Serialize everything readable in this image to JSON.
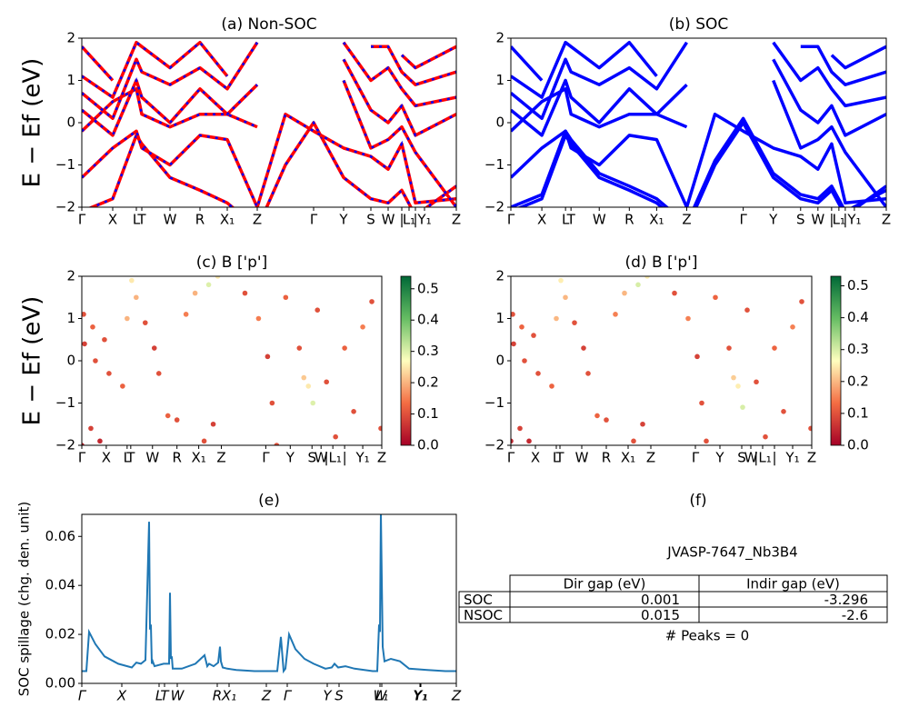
{
  "chart_data": [
    {
      "type": "band",
      "title": "(a) Non-SOC",
      "ylabel": "E − Ef (eV)",
      "color_overlay": "#0000ff",
      "xlim": [
        0,
        412
      ],
      "ylim": [
        -2,
        2
      ],
      "yticks": [
        {
          "value": -2,
          "label": "−2"
        },
        {
          "value": -1,
          "label": "−1"
        },
        0,
        1,
        2
      ],
      "xticks": [
        {
          "value": 0,
          "label": "Γ"
        },
        {
          "value": 34,
          "label": "X"
        },
        {
          "value": 60,
          "label": "L"
        },
        {
          "value": 66,
          "label": "T"
        },
        {
          "value": 97,
          "label": "W"
        },
        {
          "value": 130,
          "label": "R"
        },
        {
          "value": 160,
          "label": "X₁"
        },
        {
          "value": 193,
          "label": "Z"
        },
        {
          "value": 255,
          "label": "Γ"
        },
        {
          "value": 288,
          "label": "Y"
        },
        {
          "value": 318,
          "label": "S"
        },
        {
          "value": 337,
          "label": "W"
        },
        {
          "value": 352,
          "label": "|"
        },
        {
          "value": 360,
          "label": "L₁"
        },
        {
          "value": 367,
          "label": "|"
        },
        {
          "value": 377,
          "label": "Y₁"
        },
        {
          "value": 412,
          "label": "Z"
        }
      ],
      "x": [
        0,
        34,
        60,
        66,
        97,
        130,
        160,
        193,
        224,
        255,
        288,
        318,
        337,
        352,
        367,
        412
      ],
      "series": [
        {
          "color": "#ff0000",
          "values": [
            -2.1,
            -1.8,
            -0.3,
            -0.5,
            -1.3,
            -1.6,
            -1.9,
            -2.5,
            -1.0,
            0.0,
            -1.3,
            -1.8,
            -1.9,
            -1.6,
            -2.2,
            -1.5
          ]
        },
        {
          "color": "#ff0000",
          "values": [
            -1.3,
            -0.6,
            -0.2,
            -0.6,
            -1.0,
            -0.3,
            -0.4,
            -2.0,
            0.2,
            -0.2,
            -0.6,
            -0.8,
            -1.1,
            -0.5,
            -1.9,
            -1.8
          ]
        },
        {
          "color": "#ff0000",
          "values": [
            -0.2,
            0.5,
            0.8,
            0.2,
            -0.1,
            0.2,
            0.2,
            -0.1,
            null,
            null,
            1.0,
            -0.6,
            -0.4,
            -0.1,
            -0.7,
            -2.0
          ]
        },
        {
          "color": "#ff0000",
          "values": [
            0.3,
            -0.3,
            1.0,
            0.6,
            0.0,
            0.8,
            0.2,
            0.9,
            null,
            null,
            1.5,
            0.3,
            0.0,
            0.4,
            -0.3,
            0.2
          ]
        },
        {
          "color": "#ff0000",
          "values": [
            0.7,
            0.1,
            1.5,
            1.2,
            0.9,
            1.3,
            0.8,
            1.9,
            null,
            null,
            1.9,
            1.0,
            1.3,
            0.8,
            0.4,
            0.6
          ]
        },
        {
          "color": "#ff0000",
          "values": [
            1.1,
            0.6,
            1.9,
            1.8,
            1.3,
            1.9,
            1.1,
            null,
            null,
            null,
            null,
            1.8,
            1.8,
            1.2,
            0.9,
            1.2
          ]
        },
        {
          "color": "#ff0000",
          "values": [
            1.8,
            1.0,
            null,
            null,
            1.7,
            null,
            1.6,
            null,
            null,
            null,
            null,
            null,
            null,
            1.6,
            1.3,
            1.8
          ]
        }
      ]
    },
    {
      "type": "band",
      "title": "(b) SOC",
      "xlim": [
        0,
        412
      ],
      "ylim": [
        -2,
        2
      ],
      "yticks": [
        {
          "value": -2,
          "label": "−2"
        },
        {
          "value": -1,
          "label": "−1"
        },
        0,
        1,
        2
      ],
      "xticks": [
        {
          "value": 0,
          "label": "Γ"
        },
        {
          "value": 34,
          "label": "X"
        },
        {
          "value": 60,
          "label": "L"
        },
        {
          "value": 66,
          "label": "T"
        },
        {
          "value": 97,
          "label": "W"
        },
        {
          "value": 130,
          "label": "R"
        },
        {
          "value": 160,
          "label": "X₁"
        },
        {
          "value": 193,
          "label": "Z"
        },
        {
          "value": 255,
          "label": "Γ"
        },
        {
          "value": 288,
          "label": "Y"
        },
        {
          "value": 318,
          "label": "S"
        },
        {
          "value": 337,
          "label": "W"
        },
        {
          "value": 352,
          "label": "|"
        },
        {
          "value": 360,
          "label": "L₁"
        },
        {
          "value": 367,
          "label": "|"
        },
        {
          "value": 377,
          "label": "Y₁"
        },
        {
          "value": 412,
          "label": "Z"
        }
      ],
      "x": [
        0,
        34,
        60,
        66,
        97,
        130,
        160,
        193,
        224,
        255,
        288,
        318,
        337,
        352,
        367,
        412
      ],
      "series": [
        {
          "color": "#0000ff",
          "values": [
            -2.1,
            -1.8,
            -0.3,
            -0.5,
            -1.3,
            -1.6,
            -1.9,
            -2.5,
            -1.0,
            0.0,
            -1.3,
            -1.8,
            -1.9,
            -1.6,
            -2.2,
            -1.5
          ]
        },
        {
          "color": "#0000ff",
          "values": [
            -2.0,
            -1.7,
            -0.2,
            -0.4,
            -1.2,
            -1.5,
            -1.8,
            -2.4,
            -0.9,
            0.1,
            -1.2,
            -1.7,
            -1.8,
            -1.5,
            -2.1,
            -1.6
          ]
        },
        {
          "color": "#0000ff",
          "values": [
            -1.3,
            -0.6,
            -0.2,
            -0.6,
            -1.0,
            -0.3,
            -0.4,
            -2.0,
            0.2,
            -0.2,
            -0.6,
            -0.8,
            -1.1,
            -0.5,
            -1.9,
            -1.8
          ]
        },
        {
          "color": "#0000ff",
          "values": [
            -0.2,
            0.5,
            0.8,
            0.2,
            -0.1,
            0.2,
            0.2,
            -0.1,
            null,
            null,
            1.0,
            -0.6,
            -0.4,
            -0.1,
            -0.7,
            -2.0
          ]
        },
        {
          "color": "#0000ff",
          "values": [
            0.3,
            -0.3,
            1.0,
            0.6,
            0.0,
            0.8,
            0.2,
            0.9,
            null,
            null,
            1.5,
            0.3,
            0.0,
            0.4,
            -0.3,
            0.2
          ]
        },
        {
          "color": "#0000ff",
          "values": [
            0.7,
            0.1,
            1.5,
            1.2,
            0.9,
            1.3,
            0.8,
            1.9,
            null,
            null,
            1.9,
            1.0,
            1.3,
            0.8,
            0.4,
            0.6
          ]
        },
        {
          "color": "#0000ff",
          "values": [
            1.1,
            0.6,
            1.9,
            1.8,
            1.3,
            1.9,
            1.1,
            null,
            null,
            null,
            null,
            1.8,
            1.8,
            1.2,
            0.9,
            1.2
          ]
        },
        {
          "color": "#0000ff",
          "values": [
            1.8,
            1.0,
            null,
            null,
            1.7,
            null,
            1.6,
            null,
            null,
            null,
            null,
            null,
            null,
            1.6,
            1.3,
            1.8
          ]
        }
      ]
    },
    {
      "type": "scatter",
      "title": "(c)  B ['p']",
      "ylabel": "E − Ef (eV)",
      "colormap": "RdYlGn",
      "xlim": [
        0,
        331
      ],
      "ylim": [
        -2,
        2
      ],
      "clim": [
        0,
        0.54
      ],
      "yticks": [
        {
          "value": -2,
          "label": "−2"
        },
        {
          "value": -1,
          "label": "−1"
        },
        0,
        1,
        2
      ],
      "cticks": [
        {
          "value": 0,
          "label": "0.0"
        },
        0.1,
        0.2,
        0.3,
        0.4,
        0.5
      ],
      "xticks": [
        {
          "value": 0,
          "label": "Γ"
        },
        {
          "value": 27,
          "label": "X"
        },
        {
          "value": 50,
          "label": "L"
        },
        {
          "value": 54,
          "label": "T"
        },
        {
          "value": 78,
          "label": "W"
        },
        {
          "value": 105,
          "label": "R"
        },
        {
          "value": 129,
          "label": "X₁"
        },
        {
          "value": 154,
          "label": "Z"
        },
        {
          "value": 203,
          "label": "Γ"
        },
        {
          "value": 230,
          "label": "Y"
        },
        {
          "value": 254,
          "label": "S"
        },
        {
          "value": 264,
          "label": "W"
        },
        {
          "value": 277,
          "label": "|L₁"
        },
        {
          "value": 290,
          "label": "|"
        },
        {
          "value": 310,
          "label": "Y₁"
        },
        {
          "value": 331,
          "label": "Z"
        }
      ],
      "x": [
        0,
        10,
        20,
        2,
        12,
        25,
        3,
        15,
        30,
        45,
        50,
        55,
        60,
        70,
        80,
        85,
        95,
        105,
        115,
        125,
        135,
        145,
        140,
        150,
        180,
        195,
        205,
        210,
        215,
        225,
        240,
        250,
        255,
        260,
        270,
        280,
        290,
        300,
        310,
        320,
        330,
        245
      ],
      "values": [
        -2.0,
        -1.6,
        -1.9,
        1.1,
        0.8,
        0.5,
        0.4,
        0.0,
        -0.3,
        -0.6,
        1.0,
        1.9,
        1.5,
        0.9,
        0.3,
        -0.3,
        -1.3,
        -1.4,
        1.1,
        1.6,
        -1.9,
        -1.5,
        1.8,
        2.0,
        1.6,
        1.0,
        0.1,
        -1.0,
        -2.0,
        1.5,
        0.3,
        -0.6,
        -1.0,
        1.2,
        -0.5,
        -1.8,
        0.3,
        -1.2,
        0.8,
        1.4,
        -1.6,
        -0.4
      ],
      "c": [
        0.05,
        0.08,
        0.05,
        0.1,
        0.12,
        0.1,
        0.08,
        0.1,
        0.1,
        0.12,
        0.2,
        0.25,
        0.2,
        0.1,
        0.08,
        0.1,
        0.12,
        0.1,
        0.15,
        0.2,
        0.1,
        0.08,
        0.3,
        0.25,
        0.1,
        0.15,
        0.08,
        0.1,
        0.1,
        0.12,
        0.1,
        0.25,
        0.3,
        0.1,
        0.1,
        0.1,
        0.12,
        0.1,
        0.15,
        0.1,
        0.1,
        0.22
      ]
    },
    {
      "type": "scatter",
      "title": "(d) B ['p']",
      "colormap": "RdYlGn",
      "xlim": [
        0,
        331
      ],
      "ylim": [
        -2,
        2
      ],
      "clim": [
        0,
        0.53
      ],
      "yticks": [
        {
          "value": -2,
          "label": "−2"
        },
        {
          "value": -1,
          "label": "−1"
        },
        0,
        1,
        2
      ],
      "cticks": [
        {
          "value": 0,
          "label": "0.0"
        },
        0.1,
        0.2,
        0.3,
        0.4,
        0.5
      ],
      "xticks": [
        {
          "value": 0,
          "label": "Γ"
        },
        {
          "value": 27,
          "label": "X"
        },
        {
          "value": 50,
          "label": "L"
        },
        {
          "value": 54,
          "label": "T"
        },
        {
          "value": 78,
          "label": "W"
        },
        {
          "value": 105,
          "label": "R"
        },
        {
          "value": 129,
          "label": "X₁"
        },
        {
          "value": 154,
          "label": "Z"
        },
        {
          "value": 203,
          "label": "Γ"
        },
        {
          "value": 230,
          "label": "Y"
        },
        {
          "value": 254,
          "label": "S"
        },
        {
          "value": 264,
          "label": "W"
        },
        {
          "value": 277,
          "label": "|L₁"
        },
        {
          "value": 290,
          "label": "|"
        },
        {
          "value": 310,
          "label": "Y₁"
        },
        {
          "value": 331,
          "label": "Z"
        }
      ],
      "x": [
        0,
        10,
        20,
        2,
        12,
        25,
        3,
        15,
        30,
        45,
        50,
        55,
        60,
        70,
        80,
        85,
        95,
        105,
        115,
        125,
        135,
        145,
        140,
        150,
        180,
        195,
        205,
        210,
        215,
        225,
        240,
        250,
        255,
        260,
        270,
        280,
        290,
        300,
        310,
        320,
        330,
        245
      ],
      "values": [
        -1.9,
        -1.6,
        -1.9,
        1.1,
        0.8,
        0.6,
        0.4,
        0.0,
        -0.3,
        -0.6,
        1.0,
        1.9,
        1.5,
        0.9,
        0.3,
        -0.3,
        -1.3,
        -1.4,
        1.1,
        1.6,
        -1.9,
        -1.5,
        1.8,
        2.0,
        1.6,
        1.0,
        0.1,
        -1.0,
        -1.9,
        1.5,
        0.3,
        -0.6,
        -1.1,
        1.2,
        -0.5,
        -1.8,
        0.3,
        -1.2,
        0.8,
        1.4,
        -1.6,
        -0.4
      ],
      "c": [
        0.05,
        0.08,
        0.05,
        0.1,
        0.12,
        0.1,
        0.08,
        0.1,
        0.1,
        0.12,
        0.2,
        0.25,
        0.2,
        0.1,
        0.08,
        0.1,
        0.12,
        0.1,
        0.15,
        0.2,
        0.1,
        0.08,
        0.3,
        0.25,
        0.1,
        0.15,
        0.08,
        0.1,
        0.1,
        0.12,
        0.1,
        0.25,
        0.3,
        0.1,
        0.1,
        0.1,
        0.12,
        0.1,
        0.15,
        0.1,
        0.1,
        0.22
      ]
    },
    {
      "type": "line",
      "title": "(e)",
      "ylabel": "SOC spillage (chg. den. unit)",
      "color": "#1f77b4",
      "xtick_style": "italic",
      "xlim": [
        0,
        412
      ],
      "ylim": [
        0,
        0.069
      ],
      "yticks": [
        {
          "value": 0,
          "label": "0.00"
        },
        0.02,
        0.04,
        0.06
      ],
      "xticks": [
        {
          "value": 0,
          "label": "Γ"
        },
        {
          "value": 44,
          "label": "X"
        },
        {
          "value": 85,
          "label": "L"
        },
        {
          "value": 91,
          "label": "T"
        },
        {
          "value": 105,
          "label": "W"
        },
        {
          "value": 149,
          "label": "R"
        },
        {
          "value": 162,
          "label": "X₁"
        },
        {
          "value": 203,
          "label": "Z"
        },
        {
          "value": 226,
          "label": "Γ"
        },
        {
          "value": 270,
          "label": "Y"
        },
        {
          "value": 283,
          "label": "S"
        },
        {
          "value": 328,
          "label": "W"
        },
        {
          "value": 330,
          "label": "L₁"
        },
        {
          "value": 372,
          "label": "Y₁"
        },
        {
          "value": 373,
          "label": "Y₁"
        },
        {
          "value": 412,
          "label": "Z"
        }
      ],
      "x": [
        0,
        5,
        8,
        15,
        25,
        40,
        55,
        60,
        65,
        70,
        74,
        75,
        76,
        77,
        78,
        80,
        90,
        96,
        97,
        98,
        99,
        100,
        110,
        125,
        135,
        138,
        140,
        145,
        150,
        152,
        153,
        155,
        160,
        170,
        190,
        200,
        215,
        219,
        222,
        224,
        228,
        235,
        245,
        255,
        268,
        275,
        278,
        282,
        290,
        300,
        320,
        325,
        327,
        328,
        329,
        331,
        333,
        340,
        350,
        360,
        380,
        400,
        412
      ],
      "values": [
        0.005,
        0.005,
        0.021,
        0.016,
        0.011,
        0.008,
        0.0065,
        0.0085,
        0.008,
        0.0095,
        0.066,
        0.022,
        0.024,
        0.008,
        0.009,
        0.007,
        0.008,
        0.008,
        0.037,
        0.01,
        0.011,
        0.006,
        0.006,
        0.008,
        0.0115,
        0.007,
        0.008,
        0.007,
        0.0085,
        0.015,
        0.009,
        0.0065,
        0.006,
        0.0055,
        0.005,
        0.005,
        0.005,
        0.019,
        0.005,
        0.006,
        0.02,
        0.014,
        0.01,
        0.008,
        0.006,
        0.0065,
        0.008,
        0.0065,
        0.007,
        0.006,
        0.005,
        0.005,
        0.024,
        0.021,
        0.07,
        0.015,
        0.009,
        0.01,
        0.009,
        0.006,
        0.0055,
        0.005,
        0.005
      ]
    }
  ],
  "table_panel": {
    "title": "(f)",
    "caption": "JVASP-7647_Nb3B4",
    "header": [
      "Dir gap (eV)",
      "Indir gap (eV)"
    ],
    "rows": [
      [
        "SOC",
        "0.001",
        "-3.296"
      ],
      [
        "NSOC",
        "0.015",
        "-2.6"
      ]
    ],
    "note": "# Peaks = 0"
  }
}
